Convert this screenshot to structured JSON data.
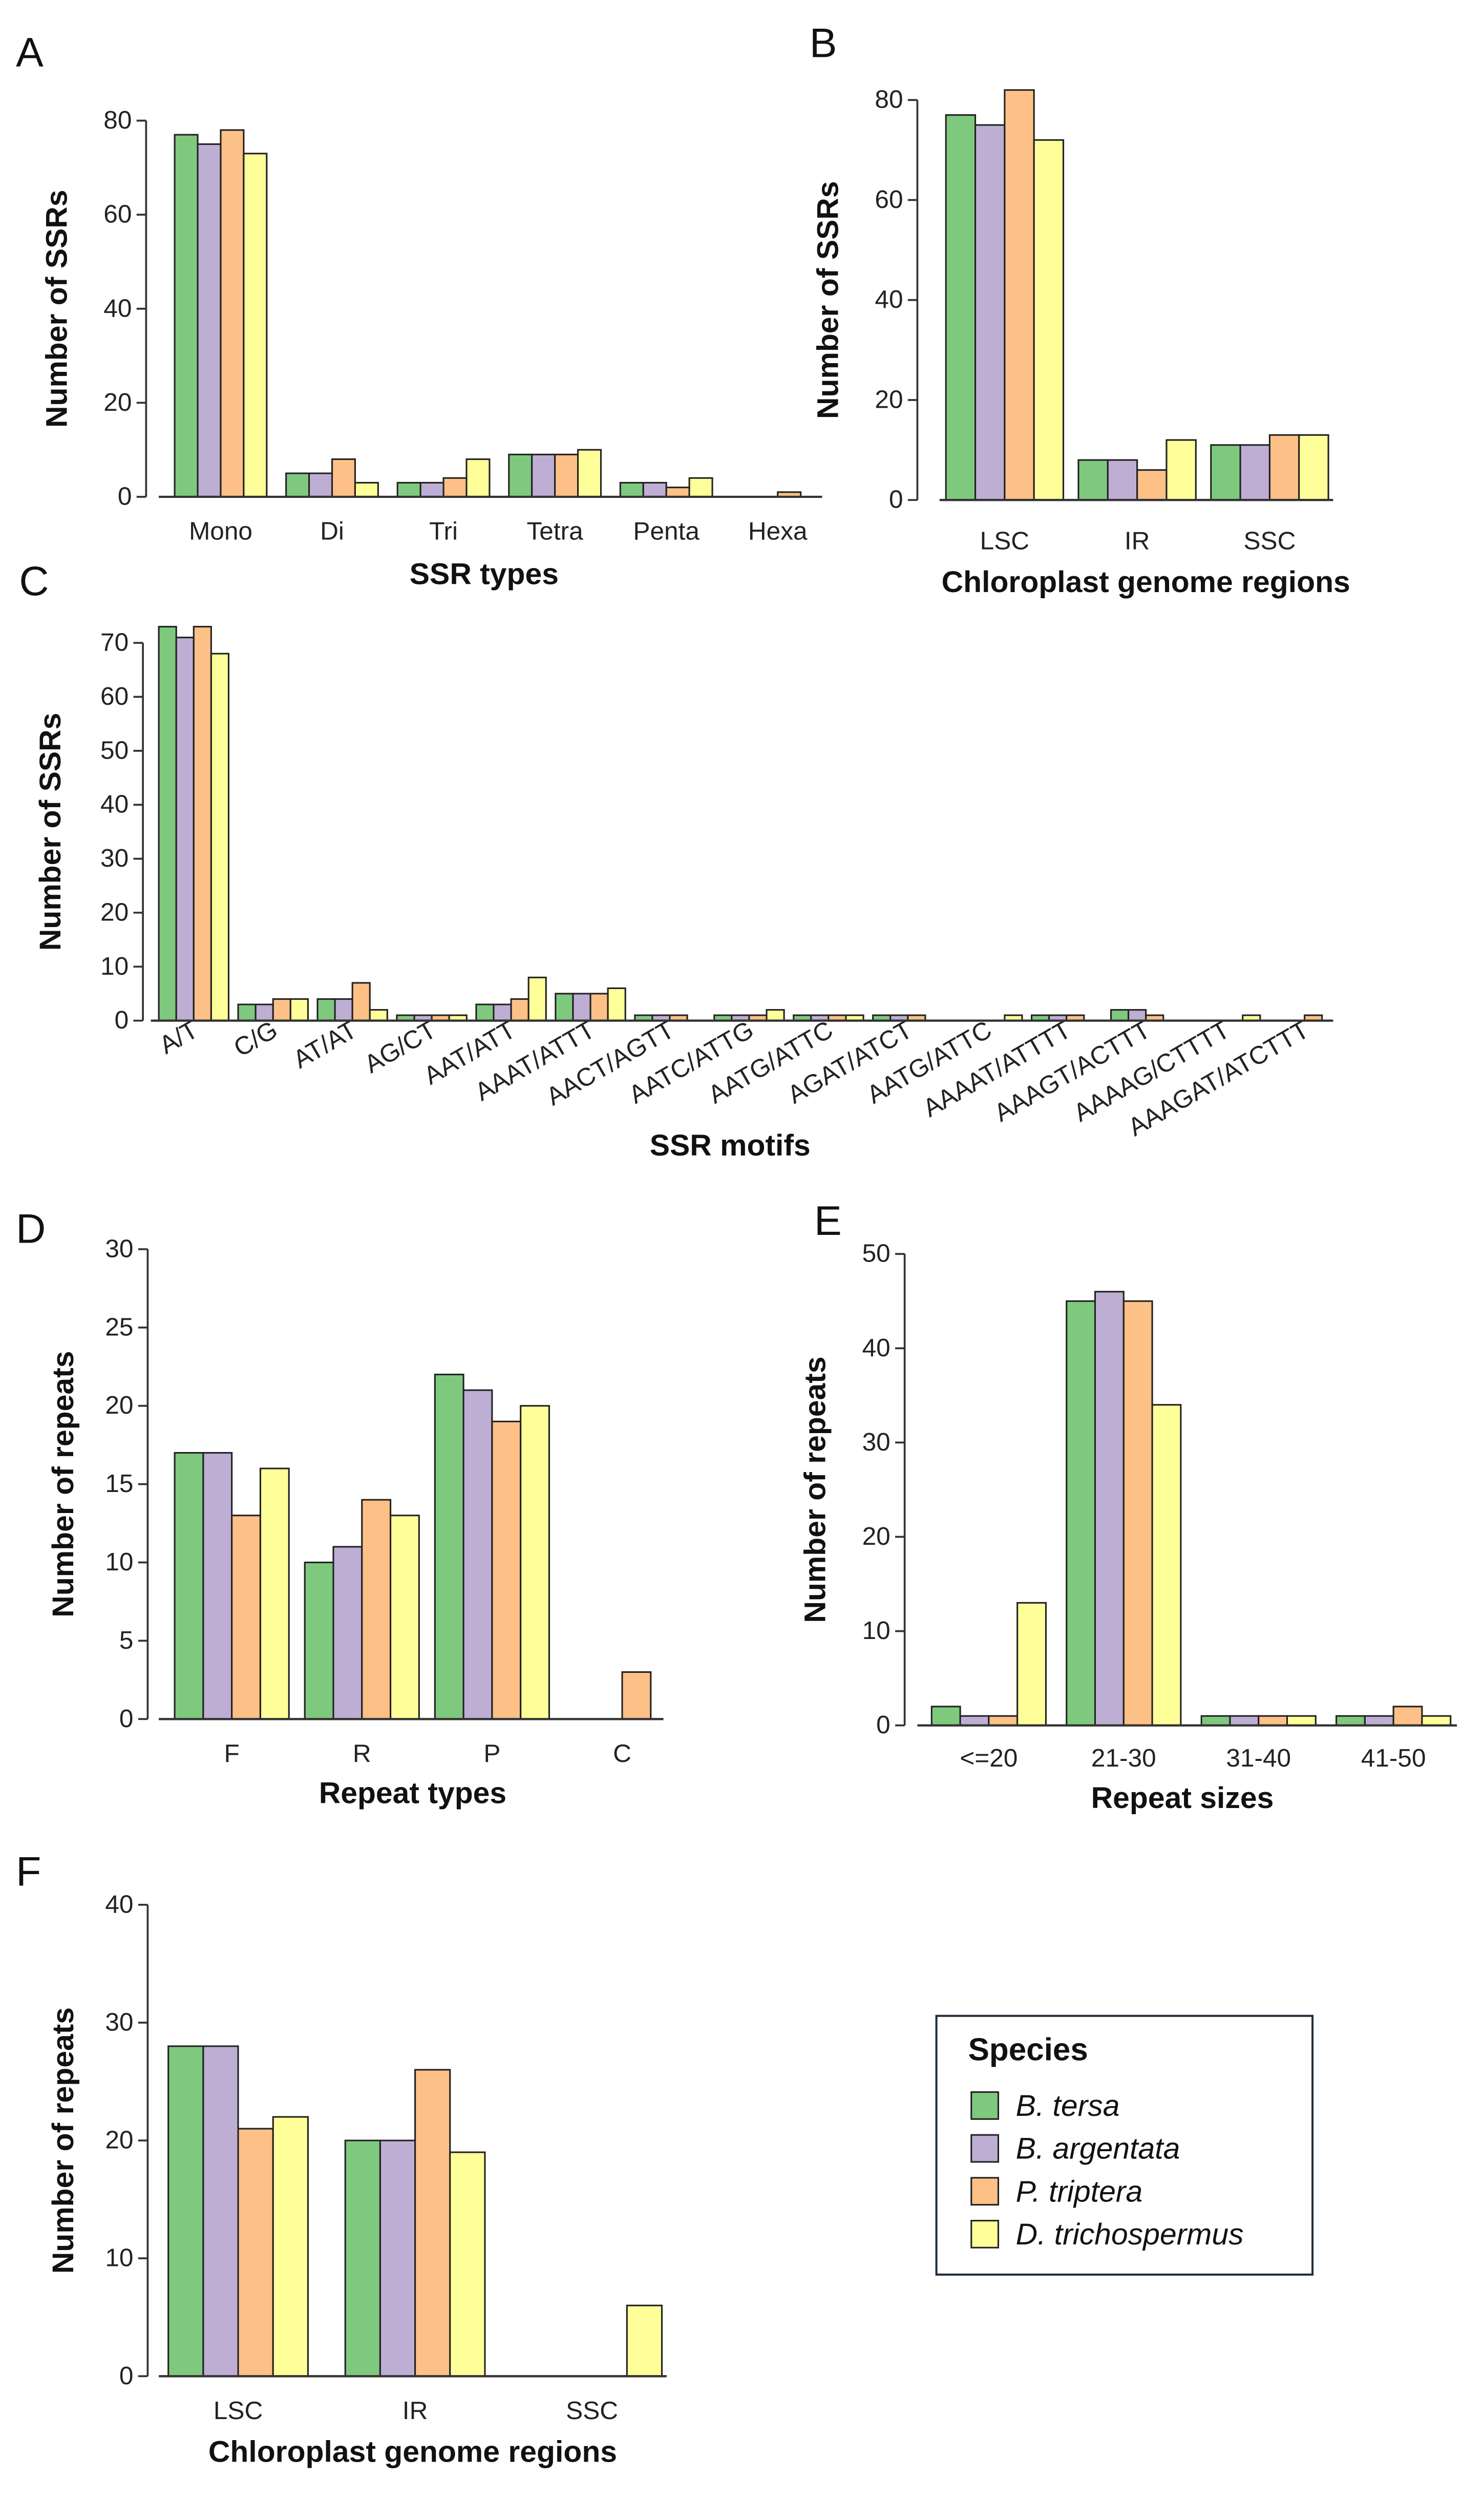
{
  "colors": [
    "#7fc97f",
    "#beaed4",
    "#fdc086",
    "#ffff99"
  ],
  "legend": {
    "title": "Species",
    "items": [
      "B. tersa",
      "B. argentata",
      "P. triptera",
      "D. trichospermus"
    ]
  },
  "chart_data": [
    {
      "panel": "A",
      "type": "bar",
      "xlabel": "SSR types",
      "ylabel": "Number of SSRs",
      "ylim": [
        0,
        80
      ],
      "yticks": [
        0,
        20,
        40,
        60,
        80
      ],
      "categories": [
        "Mono",
        "Di",
        "Tri",
        "Tetra",
        "Penta",
        "Hexa"
      ],
      "series": [
        {
          "name": "B. tersa",
          "values": [
            77,
            5,
            3,
            9,
            3,
            0
          ]
        },
        {
          "name": "B. argentata",
          "values": [
            75,
            5,
            3,
            9,
            3,
            0
          ]
        },
        {
          "name": "P. triptera",
          "values": [
            78,
            8,
            4,
            9,
            2,
            1
          ]
        },
        {
          "name": "D. trichospermus",
          "values": [
            73,
            3,
            8,
            10,
            4,
            0
          ]
        }
      ]
    },
    {
      "panel": "B",
      "type": "bar",
      "xlabel": "Chloroplast genome regions",
      "ylabel": "Number of SSRs",
      "ylim": [
        0,
        80
      ],
      "yticks": [
        0,
        20,
        40,
        60,
        80
      ],
      "categories": [
        "LSC",
        "IR",
        "SSC"
      ],
      "series": [
        {
          "name": "B. tersa",
          "values": [
            77,
            8,
            11
          ]
        },
        {
          "name": "B. argentata",
          "values": [
            75,
            8,
            11
          ]
        },
        {
          "name": "P. triptera",
          "values": [
            82,
            6,
            13
          ]
        },
        {
          "name": "D. trichospermus",
          "values": [
            72,
            12,
            13
          ]
        }
      ]
    },
    {
      "panel": "C",
      "type": "bar",
      "xlabel": "SSR motifs",
      "ylabel": "Number of SSRs",
      "ylim": [
        0,
        70
      ],
      "yticks": [
        0,
        10,
        20,
        30,
        40,
        50,
        60,
        70
      ],
      "categories": [
        "A/T",
        "C/G",
        "AT/AT",
        "AG/CT",
        "AAT/ATT",
        "AAAT/ATTT",
        "AACT/AGTT",
        "AATC/ATTG",
        "AATG/ATTC",
        "AGAT/ATCT",
        "AATG/ATTC",
        "AAAAT/ATTTT",
        "AAAGT/ACTTT",
        "AAAAG/CTTTT",
        "AAAGAT/ATCTTT"
      ],
      "series": [
        {
          "name": "B. tersa",
          "values": [
            73,
            3,
            4,
            1,
            3,
            5,
            1,
            1,
            1,
            1,
            0,
            1,
            2,
            0,
            0
          ]
        },
        {
          "name": "B. argentata",
          "values": [
            71,
            3,
            4,
            1,
            3,
            5,
            1,
            1,
            1,
            1,
            0,
            1,
            2,
            0,
            0
          ]
        },
        {
          "name": "P. triptera",
          "values": [
            73,
            4,
            7,
            1,
            4,
            5,
            1,
            1,
            1,
            1,
            0,
            1,
            1,
            0,
            1
          ]
        },
        {
          "name": "D. trichospermus",
          "values": [
            68,
            4,
            2,
            1,
            8,
            6,
            0,
            2,
            1,
            0,
            1,
            0,
            0,
            1,
            0
          ]
        }
      ]
    },
    {
      "panel": "D",
      "type": "bar",
      "xlabel": "Repeat types",
      "ylabel": "Number of repeats",
      "ylim": [
        0,
        30
      ],
      "yticks": [
        0,
        5,
        10,
        15,
        20,
        25,
        30
      ],
      "categories": [
        "F",
        "R",
        "P",
        "C"
      ],
      "series": [
        {
          "name": "B. tersa",
          "values": [
            17,
            10,
            22,
            0
          ]
        },
        {
          "name": "B. argentata",
          "values": [
            17,
            11,
            21,
            0
          ]
        },
        {
          "name": "P. triptera",
          "values": [
            13,
            14,
            19,
            3
          ]
        },
        {
          "name": "D. trichospermus",
          "values": [
            16,
            13,
            20,
            0
          ]
        }
      ]
    },
    {
      "panel": "E",
      "type": "bar",
      "xlabel": "Repeat sizes",
      "ylabel": "Number of repeats",
      "ylim": [
        0,
        50
      ],
      "yticks": [
        0,
        10,
        20,
        30,
        40,
        50
      ],
      "categories": [
        "<=20",
        "21-30",
        "31-40",
        "41-50"
      ],
      "series": [
        {
          "name": "B. tersa",
          "values": [
            2,
            45,
            1,
            1
          ]
        },
        {
          "name": "B. argentata",
          "values": [
            1,
            46,
            1,
            1
          ]
        },
        {
          "name": "P. triptera",
          "values": [
            1,
            45,
            1,
            2
          ]
        },
        {
          "name": "D. trichospermus",
          "values": [
            13,
            34,
            1,
            1
          ]
        }
      ]
    },
    {
      "panel": "F",
      "type": "bar",
      "xlabel": "Chloroplast genome regions",
      "ylabel": "Number of repeats",
      "ylim": [
        0,
        40
      ],
      "yticks": [
        0,
        10,
        20,
        30,
        40
      ],
      "categories": [
        "LSC",
        "IR",
        "SSC"
      ],
      "series": [
        {
          "name": "B. tersa",
          "values": [
            28,
            20,
            0
          ]
        },
        {
          "name": "B. argentata",
          "values": [
            28,
            20,
            0
          ]
        },
        {
          "name": "P. triptera",
          "values": [
            21,
            26,
            0
          ]
        },
        {
          "name": "D. trichospermus",
          "values": [
            22,
            19,
            6
          ]
        }
      ]
    }
  ]
}
